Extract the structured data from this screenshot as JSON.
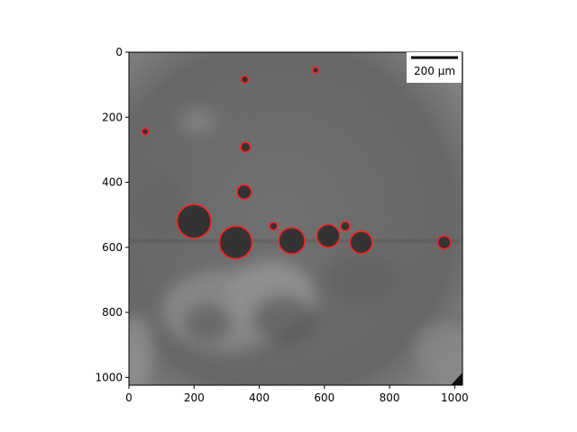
{
  "image": {
    "description_type": "grayscale microscopy image with droplets outlined in red",
    "colors": {
      "background_mid": "#6e6e6e",
      "dark_blob": "#333333",
      "outline": "#ff2020"
    }
  },
  "scale_bar": {
    "label": "200 µm"
  },
  "axes": {
    "x_ticks": [
      "0",
      "200",
      "400",
      "600",
      "800",
      "1000"
    ],
    "y_ticks": [
      "0",
      "200",
      "400",
      "600",
      "800",
      "1000"
    ],
    "xlim": [
      0,
      1024
    ],
    "ylim": [
      1024,
      0
    ]
  },
  "features": [
    {
      "x": 200,
      "y": 520,
      "r": 52
    },
    {
      "x": 328,
      "y": 585,
      "r": 50
    },
    {
      "x": 500,
      "y": 580,
      "r": 40
    },
    {
      "x": 612,
      "y": 565,
      "r": 35
    },
    {
      "x": 713,
      "y": 585,
      "r": 34
    },
    {
      "x": 968,
      "y": 585,
      "r": 20
    },
    {
      "x": 354,
      "y": 430,
      "r": 22
    },
    {
      "x": 358,
      "y": 292,
      "r": 15
    },
    {
      "x": 444,
      "y": 535,
      "r": 12
    },
    {
      "x": 664,
      "y": 535,
      "r": 14
    },
    {
      "x": 356,
      "y": 84,
      "r": 11
    },
    {
      "x": 573,
      "y": 55,
      "r": 9
    },
    {
      "x": 50,
      "y": 244,
      "r": 10
    }
  ]
}
